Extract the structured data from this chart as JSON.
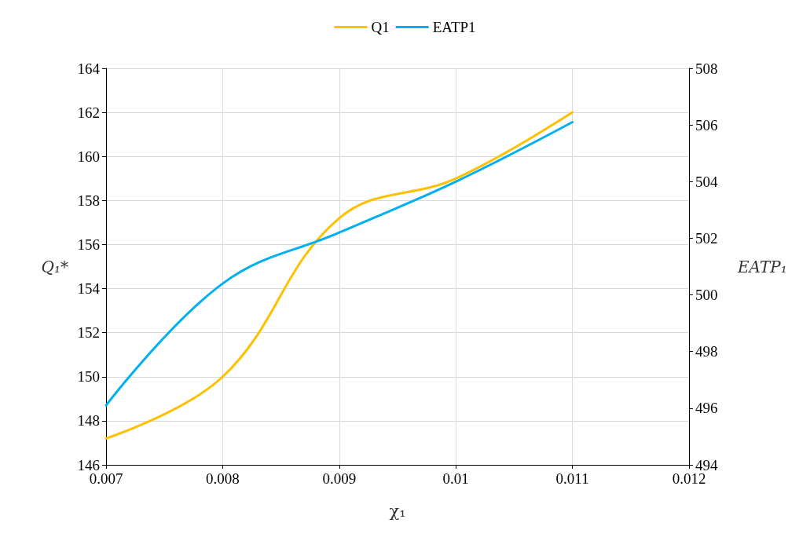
{
  "chart_data": {
    "type": "line",
    "xlabel": "χ₁",
    "ylabel": "Q₁*",
    "y2label": "EATP₁",
    "x": [
      0.007,
      0.008,
      0.009,
      0.01,
      0.011
    ],
    "series": [
      {
        "name": "Q1",
        "color": "#ffc000",
        "values": [
          147.2,
          150,
          157.2,
          159,
          162
        ]
      },
      {
        "name": "EATP1",
        "color": "#00b0f0",
        "axis": "y2",
        "values": [
          496.1,
          500.4,
          502.2,
          504,
          506.1
        ]
      }
    ],
    "xlim": [
      0.007,
      0.012
    ],
    "xticks": [
      0.007,
      0.008,
      0.009,
      0.01,
      0.011,
      0.012
    ],
    "ylim": [
      146,
      164
    ],
    "yticks": [
      146,
      148,
      150,
      152,
      154,
      156,
      158,
      160,
      162,
      164
    ],
    "y2lim": [
      494,
      508
    ],
    "y2ticks": [
      494,
      496,
      498,
      500,
      502,
      504,
      506,
      508
    ],
    "grid": true,
    "legend": "top",
    "marker": "none",
    "line_style": "solid"
  }
}
